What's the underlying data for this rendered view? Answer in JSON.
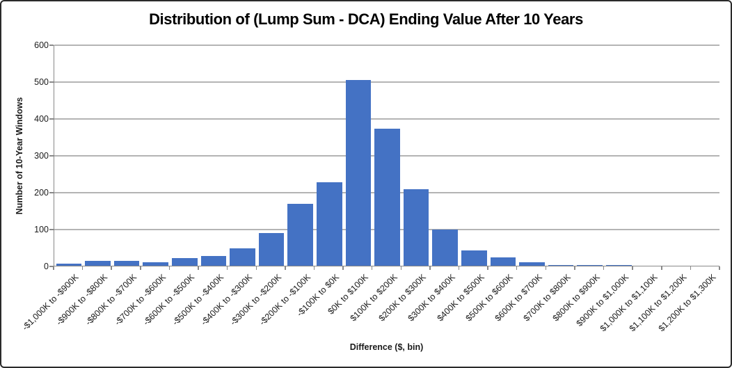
{
  "window": {
    "background_color": "#ffffff",
    "frame_border_color": "#2a2a2a"
  },
  "chart_data": {
    "type": "bar",
    "title": "Distribution of (Lump Sum - DCA) Ending Value After 10 Years",
    "xlabel": "Difference ($, bin)",
    "ylabel": "Number of 10-Year Windows",
    "categories": [
      "-$1,000K to -$900K",
      "-$900K to -$800K",
      "-$800K to -$700K",
      "-$700K to -$600K",
      "-$600K to -$500K",
      "-$500K to -$400K",
      "-$400K to -$300K",
      "-$300K to -$200K",
      "-$200K to -$100K",
      "-$100K to $0K",
      "$0K to $100K",
      "$100K to $200K",
      "$200K to $300K",
      "$300K to $400K",
      "$400K to $500K",
      "$500K to $600K",
      "$600K to $700K",
      "$700K to $800K",
      "$800K to $900K",
      "$900K to $1,000K",
      "$1,000K to $1,100K",
      "$1,100K to $1,200K",
      "$1,200K to $1,300K"
    ],
    "values": [
      6,
      13,
      13,
      9,
      20,
      26,
      47,
      89,
      168,
      227,
      504,
      371,
      207,
      99,
      41,
      22,
      9,
      2,
      2,
      2,
      0,
      0,
      0
    ],
    "ylim": [
      0,
      600
    ],
    "yticks": [
      0,
      100,
      200,
      300,
      400,
      500,
      600
    ],
    "grid": true,
    "legend": "none",
    "bar_color": "#4472C4",
    "gridline_color": "#b4b4b4",
    "axis_color": "#898989"
  }
}
